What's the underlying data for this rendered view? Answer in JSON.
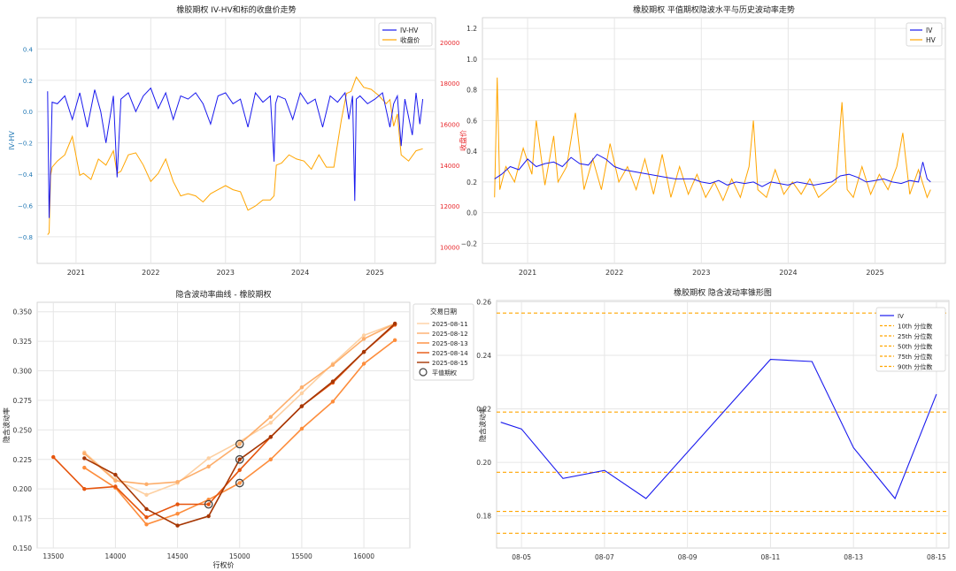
{
  "colors": {
    "iv": "#1a1aee",
    "hv": "#ffa500",
    "close": "#ffa500",
    "left_axis": "#1f77b4",
    "right_axis": "#e8262a",
    "grid": "#e6e6e6",
    "quantile": "#ffa500"
  },
  "chart_data": [
    {
      "id": "iv-hv-close",
      "type": "line",
      "title": "橡胶期权 IV-HV和标的收盘价走势",
      "ylabel_left": "IV-HV",
      "ylabel_right": "收盘价",
      "xlim": [
        2020.48,
        2025.81
      ],
      "ylim_left": [
        -0.97,
        0.6
      ],
      "ylim_right": [
        9200,
        21200
      ],
      "x_ticks": [
        2021,
        2022,
        2023,
        2024,
        2025
      ],
      "x_tick_labels": [
        "2021",
        "2022",
        "2023",
        "2024",
        "2025"
      ],
      "y_left_ticks": [
        -0.8,
        -0.6,
        -0.4,
        -0.2,
        0.0,
        0.2,
        0.4
      ],
      "y_left_tick_labels": [
        "−0.8",
        "−0.6",
        "−0.4",
        "−0.2",
        "0.0",
        "0.2",
        "0.4"
      ],
      "y_right_ticks": [
        10000,
        12000,
        14000,
        16000,
        18000,
        20000
      ],
      "y_right_tick_labels": [
        "10000",
        "12000",
        "14000",
        "16000",
        "18000",
        "20000"
      ],
      "legend": [
        "IV-HV",
        "收盘价"
      ],
      "legend_position": "top-right",
      "grid": true,
      "series": [
        {
          "name": "IV-HV",
          "axis": "left",
          "x": [
            2020.62,
            2020.64,
            2020.66,
            2020.68,
            2020.75,
            2020.85,
            2020.95,
            2021.05,
            2021.15,
            2021.25,
            2021.33,
            2021.4,
            2021.5,
            2021.55,
            2021.6,
            2021.7,
            2021.8,
            2021.9,
            2022.0,
            2022.1,
            2022.2,
            2022.3,
            2022.4,
            2022.5,
            2022.6,
            2022.7,
            2022.8,
            2022.9,
            2023.0,
            2023.1,
            2023.2,
            2023.3,
            2023.4,
            2023.5,
            2023.6,
            2023.65,
            2023.67,
            2023.7,
            2023.8,
            2023.9,
            2024.0,
            2024.1,
            2024.2,
            2024.3,
            2024.4,
            2024.5,
            2024.6,
            2024.65,
            2024.7,
            2024.73,
            2024.75,
            2024.8,
            2024.9,
            2025.0,
            2025.1,
            2025.2,
            2025.25,
            2025.3,
            2025.35,
            2025.4,
            2025.5,
            2025.55,
            2025.6,
            2025.64
          ],
          "y": [
            0.13,
            -0.68,
            -0.35,
            0.06,
            0.05,
            0.1,
            -0.05,
            0.12,
            -0.1,
            0.14,
            0.0,
            -0.2,
            0.1,
            -0.42,
            0.08,
            0.12,
            0.0,
            0.1,
            0.15,
            0.02,
            0.12,
            -0.05,
            0.1,
            0.08,
            0.12,
            0.05,
            -0.08,
            0.1,
            0.12,
            0.05,
            0.08,
            -0.1,
            0.12,
            0.06,
            0.1,
            -0.32,
            0.05,
            0.1,
            0.08,
            -0.05,
            0.12,
            0.05,
            0.08,
            -0.1,
            0.1,
            0.06,
            0.12,
            -0.05,
            0.1,
            -0.57,
            0.08,
            0.1,
            0.05,
            0.08,
            0.12,
            -0.1,
            0.05,
            0.1,
            -0.22,
            0.08,
            -0.15,
            0.12,
            -0.08,
            0.08
          ]
        },
        {
          "name": "收盘价",
          "axis": "right",
          "x": [
            2020.62,
            2020.64,
            2020.66,
            2020.68,
            2020.75,
            2020.85,
            2020.95,
            2021.05,
            2021.1,
            2021.2,
            2021.3,
            2021.4,
            2021.5,
            2021.55,
            2021.6,
            2021.7,
            2021.8,
            2021.9,
            2022.0,
            2022.1,
            2022.2,
            2022.3,
            2022.4,
            2022.5,
            2022.6,
            2022.7,
            2022.8,
            2022.9,
            2023.0,
            2023.1,
            2023.2,
            2023.3,
            2023.4,
            2023.5,
            2023.6,
            2023.65,
            2023.68,
            2023.75,
            2023.85,
            2023.95,
            2024.05,
            2024.15,
            2024.25,
            2024.35,
            2024.45,
            2024.55,
            2024.62,
            2024.68,
            2024.75,
            2024.85,
            2024.95,
            2025.05,
            2025.15,
            2025.2,
            2025.25,
            2025.3,
            2025.35,
            2025.45,
            2025.55,
            2025.64
          ],
          "y": [
            10600,
            10700,
            13500,
            13900,
            14200,
            14500,
            15400,
            13500,
            13600,
            13300,
            14300,
            14000,
            14700,
            13600,
            13700,
            14500,
            14600,
            14000,
            13200,
            13600,
            14300,
            13200,
            12500,
            12600,
            12500,
            12200,
            12600,
            12800,
            13000,
            12800,
            12700,
            11800,
            12000,
            12300,
            12300,
            12500,
            14000,
            14100,
            14500,
            14300,
            14200,
            13800,
            14500,
            13900,
            13900,
            16200,
            17500,
            17600,
            18300,
            17800,
            17700,
            17400,
            17000,
            17200,
            15900,
            16500,
            14500,
            14200,
            14700,
            14800
          ]
        }
      ]
    },
    {
      "id": "atm-iv-hv",
      "type": "line",
      "title": "橡胶期权 平值期权隐波水平与历史波动率走势",
      "xlim": [
        2020.48,
        2025.81
      ],
      "ylim": [
        -0.33,
        1.27
      ],
      "x_ticks": [
        2021,
        2022,
        2023,
        2024,
        2025
      ],
      "x_tick_labels": [
        "2021",
        "2022",
        "2023",
        "2024",
        "2025"
      ],
      "y_ticks": [
        -0.2,
        0.0,
        0.2,
        0.4,
        0.6,
        0.8,
        1.0,
        1.2
      ],
      "y_tick_labels": [
        "−0.2",
        "0.0",
        "0.2",
        "0.4",
        "0.6",
        "0.8",
        "1.0",
        "1.2"
      ],
      "legend": [
        "IV",
        "HV"
      ],
      "legend_position": "top-right",
      "grid": true,
      "series": [
        {
          "name": "IV",
          "x": [
            2020.62,
            2020.7,
            2020.8,
            2020.9,
            2021.0,
            2021.1,
            2021.2,
            2021.3,
            2021.4,
            2021.5,
            2021.6,
            2021.7,
            2021.8,
            2021.9,
            2022.0,
            2022.1,
            2022.2,
            2022.3,
            2022.4,
            2022.5,
            2022.6,
            2022.7,
            2022.8,
            2022.9,
            2023.0,
            2023.1,
            2023.2,
            2023.3,
            2023.4,
            2023.5,
            2023.6,
            2023.7,
            2023.8,
            2023.9,
            2024.0,
            2024.1,
            2024.2,
            2024.3,
            2024.4,
            2024.5,
            2024.6,
            2024.7,
            2024.8,
            2024.9,
            2025.0,
            2025.1,
            2025.2,
            2025.3,
            2025.4,
            2025.5,
            2025.55,
            2025.6,
            2025.64
          ],
          "y": [
            0.22,
            0.25,
            0.3,
            0.28,
            0.35,
            0.3,
            0.32,
            0.33,
            0.3,
            0.36,
            0.32,
            0.31,
            0.38,
            0.35,
            0.3,
            0.28,
            0.27,
            0.26,
            0.25,
            0.24,
            0.23,
            0.22,
            0.22,
            0.22,
            0.2,
            0.19,
            0.21,
            0.18,
            0.2,
            0.19,
            0.2,
            0.17,
            0.2,
            0.19,
            0.18,
            0.2,
            0.19,
            0.18,
            0.19,
            0.2,
            0.24,
            0.25,
            0.23,
            0.2,
            0.21,
            0.22,
            0.2,
            0.19,
            0.21,
            0.2,
            0.33,
            0.22,
            0.2
          ]
        },
        {
          "name": "HV",
          "x": [
            2020.62,
            2020.65,
            2020.68,
            2020.75,
            2020.85,
            2020.95,
            2021.05,
            2021.1,
            2021.2,
            2021.3,
            2021.35,
            2021.45,
            2021.55,
            2021.65,
            2021.75,
            2021.85,
            2021.95,
            2022.05,
            2022.15,
            2022.25,
            2022.35,
            2022.45,
            2022.55,
            2022.65,
            2022.75,
            2022.85,
            2022.95,
            2023.05,
            2023.15,
            2023.25,
            2023.35,
            2023.45,
            2023.55,
            2023.6,
            2023.65,
            2023.75,
            2023.85,
            2023.95,
            2024.05,
            2024.15,
            2024.25,
            2024.35,
            2024.45,
            2024.55,
            2024.62,
            2024.68,
            2024.75,
            2024.85,
            2024.95,
            2025.05,
            2025.15,
            2025.25,
            2025.32,
            2025.4,
            2025.5,
            2025.6,
            2025.64
          ],
          "y": [
            0.1,
            0.88,
            0.15,
            0.3,
            0.2,
            0.42,
            0.25,
            0.6,
            0.18,
            0.5,
            0.2,
            0.3,
            0.65,
            0.15,
            0.35,
            0.15,
            0.45,
            0.2,
            0.3,
            0.15,
            0.35,
            0.12,
            0.38,
            0.1,
            0.3,
            0.12,
            0.25,
            0.1,
            0.2,
            0.08,
            0.22,
            0.1,
            0.3,
            0.6,
            0.15,
            0.1,
            0.28,
            0.12,
            0.2,
            0.12,
            0.22,
            0.1,
            0.15,
            0.2,
            0.72,
            0.15,
            0.1,
            0.3,
            0.12,
            0.25,
            0.15,
            0.3,
            0.52,
            0.12,
            0.28,
            0.1,
            0.15
          ]
        }
      ]
    },
    {
      "id": "smile",
      "type": "line",
      "title": "隐含波动率曲线 - 橡胶期权",
      "xlabel": "行权价",
      "ylabel": "隐含波动率",
      "xlim": [
        13370,
        16370
      ],
      "ylim": [
        0.15,
        0.358
      ],
      "x_ticks": [
        13500,
        14000,
        14500,
        15000,
        15500,
        16000
      ],
      "x_tick_labels": [
        "13500",
        "14000",
        "14500",
        "15000",
        "15500",
        "16000"
      ],
      "y_ticks": [
        0.15,
        0.175,
        0.2,
        0.225,
        0.25,
        0.275,
        0.3,
        0.325,
        0.35
      ],
      "y_tick_labels": [
        "0.150",
        "0.175",
        "0.200",
        "0.225",
        "0.250",
        "0.275",
        "0.300",
        "0.325",
        "0.350"
      ],
      "legend_title": "交易日期",
      "legend": [
        "2025-08-11",
        "2025-08-12",
        "2025-08-13",
        "2025-08-14",
        "2025-08-15",
        "平值期权"
      ],
      "legend_position": "outside-right",
      "grid": true,
      "series": [
        {
          "name": "2025-08-11",
          "color": "#fdd0a2",
          "x": [
            13750,
            14000,
            14250,
            14500,
            14750,
            15000,
            15250,
            15500,
            15750,
            16000,
            16250
          ],
          "y": [
            0.231,
            0.208,
            0.195,
            0.205,
            0.226,
            0.24,
            0.256,
            0.281,
            0.306,
            0.33,
            0.34
          ]
        },
        {
          "name": "2025-08-12",
          "color": "#fdae6b",
          "x": [
            13750,
            14000,
            14250,
            14500,
            14750,
            15000,
            15250,
            15500,
            15750,
            16000,
            16250
          ],
          "y": [
            0.23,
            0.207,
            0.204,
            0.206,
            0.219,
            0.238,
            0.261,
            0.286,
            0.305,
            0.327,
            0.34
          ]
        },
        {
          "name": "2025-08-13",
          "color": "#fd8d3c",
          "x": [
            13750,
            14000,
            14250,
            14500,
            14750,
            15000,
            15250,
            15500,
            15750,
            16000,
            16250
          ],
          "y": [
            0.218,
            0.201,
            0.17,
            0.179,
            0.191,
            0.205,
            0.225,
            0.251,
            0.274,
            0.306,
            0.326
          ]
        },
        {
          "name": "2025-08-14",
          "color": "#e6550d",
          "x": [
            13500,
            13750,
            14000,
            14250,
            14500,
            14750,
            15000,
            15250,
            15500,
            15750,
            16000,
            16250
          ],
          "y": [
            0.227,
            0.2,
            0.202,
            0.176,
            0.187,
            0.187,
            0.216,
            0.244,
            0.27,
            0.29,
            0.316,
            0.339
          ]
        },
        {
          "name": "2025-08-15",
          "color": "#a63603",
          "x": [
            13750,
            14000,
            14250,
            14500,
            14750,
            15000,
            15250,
            15500,
            15750,
            16000,
            16250
          ],
          "y": [
            0.226,
            0.212,
            0.183,
            0.169,
            0.177,
            0.225,
            0.244,
            0.27,
            0.291,
            0.316,
            0.34
          ]
        }
      ],
      "atm_points": [
        {
          "x": 14750,
          "y": 0.187
        },
        {
          "x": 15000,
          "y": 0.238
        },
        {
          "x": 15000,
          "y": 0.225
        },
        {
          "x": 15000,
          "y": 0.205
        }
      ]
    },
    {
      "id": "cone",
      "type": "line",
      "title": "橡胶期权 隐含波动率锥形图",
      "ylabel": "隐含波动率",
      "xlim": [
        -0.6,
        10.3
      ],
      "ylim": [
        0.168,
        0.2605
      ],
      "x_ticks": [
        0,
        2,
        4,
        6,
        8,
        10
      ],
      "x_tick_labels": [
        "08-05",
        "08-07",
        "08-09",
        "08-11",
        "08-13",
        "08-15"
      ],
      "y_ticks": [
        0.18,
        0.2,
        0.22,
        0.24,
        0.26
      ],
      "y_tick_labels": [
        "0.18",
        "0.20",
        "0.22",
        "0.24",
        "0.26"
      ],
      "legend": [
        "IV",
        "10th 分位数",
        "25th 分位数",
        "50th 分位数",
        "75th 分位数",
        "90th 分位数"
      ],
      "legend_position": "top-right",
      "grid": true,
      "series": [
        {
          "name": "IV",
          "x": [
            -0.5,
            0,
            1,
            2,
            3,
            6,
            7,
            8,
            9,
            10
          ],
          "y": [
            0.215,
            0.2125,
            0.194,
            0.197,
            0.1865,
            0.2385,
            0.2377,
            0.2055,
            0.1865,
            0.2255
          ]
        }
      ],
      "quantiles": [
        {
          "name": "10th 分位数",
          "value": 0.1735
        },
        {
          "name": "25th 分位数",
          "value": 0.1817
        },
        {
          "name": "50th 分位数",
          "value": 0.1963
        },
        {
          "name": "75th 分位数",
          "value": 0.2188
        },
        {
          "name": "90th 分位数",
          "value": 0.2558
        }
      ]
    }
  ]
}
